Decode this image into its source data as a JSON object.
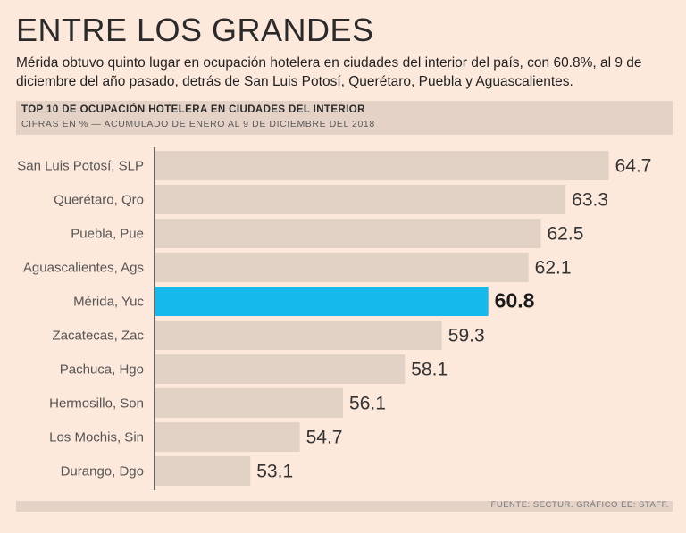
{
  "headline": "ENTRE LOS GRANDES",
  "deck": "Mérida obtuvo quinto lugar en ocupación hotelera en ciudades del interior del país, con 60.8%, al 9 de diciembre del año pasado, detrás de San Luis Potosí, Querétaro, Puebla y Aguascalientes.",
  "chart_header": {
    "title": "TOP 10 DE OCUPACIÓN HOTELERA EN CIUDADES DEL INTERIOR",
    "units": "CIFRAS EN % — ACUMULADO DE ENERO AL 9 DE DICIEMBRE DEL 2018"
  },
  "footer": {
    "source": "FUENTE: SECTUR. GRÁFICO EE: STAFF."
  },
  "colors": {
    "bar": "#e2d2c6",
    "highlight": "#16b9ec",
    "axis": "#3a3a3a"
  },
  "chart_data": {
    "type": "bar",
    "orientation": "horizontal",
    "title": "TOP 10 DE OCUPACIÓN HOTELERA EN CIUDADES DEL INTERIOR",
    "xlabel": "",
    "ylabel": "",
    "xlim": [
      50,
      65
    ],
    "highlight": "Mérida, Yuc",
    "categories": [
      "San Luis Potosí, SLP",
      "Querétaro, Qro",
      "Puebla, Pue",
      "Aguascalientes, Ags",
      "Mérida, Yuc",
      "Zacatecas, Zac",
      "Pachuca, Hgo",
      "Hermosillo, Son",
      "Los Mochis, Sin",
      "Durango, Dgo"
    ],
    "values": [
      64.7,
      63.3,
      62.5,
      62.1,
      60.8,
      59.3,
      58.1,
      56.1,
      54.7,
      53.1
    ],
    "value_labels": [
      "64.7",
      "63.3",
      "62.5",
      "62.1",
      "60.8",
      "59.3",
      "58.1",
      "56.1",
      "54.7",
      "53.1"
    ]
  }
}
